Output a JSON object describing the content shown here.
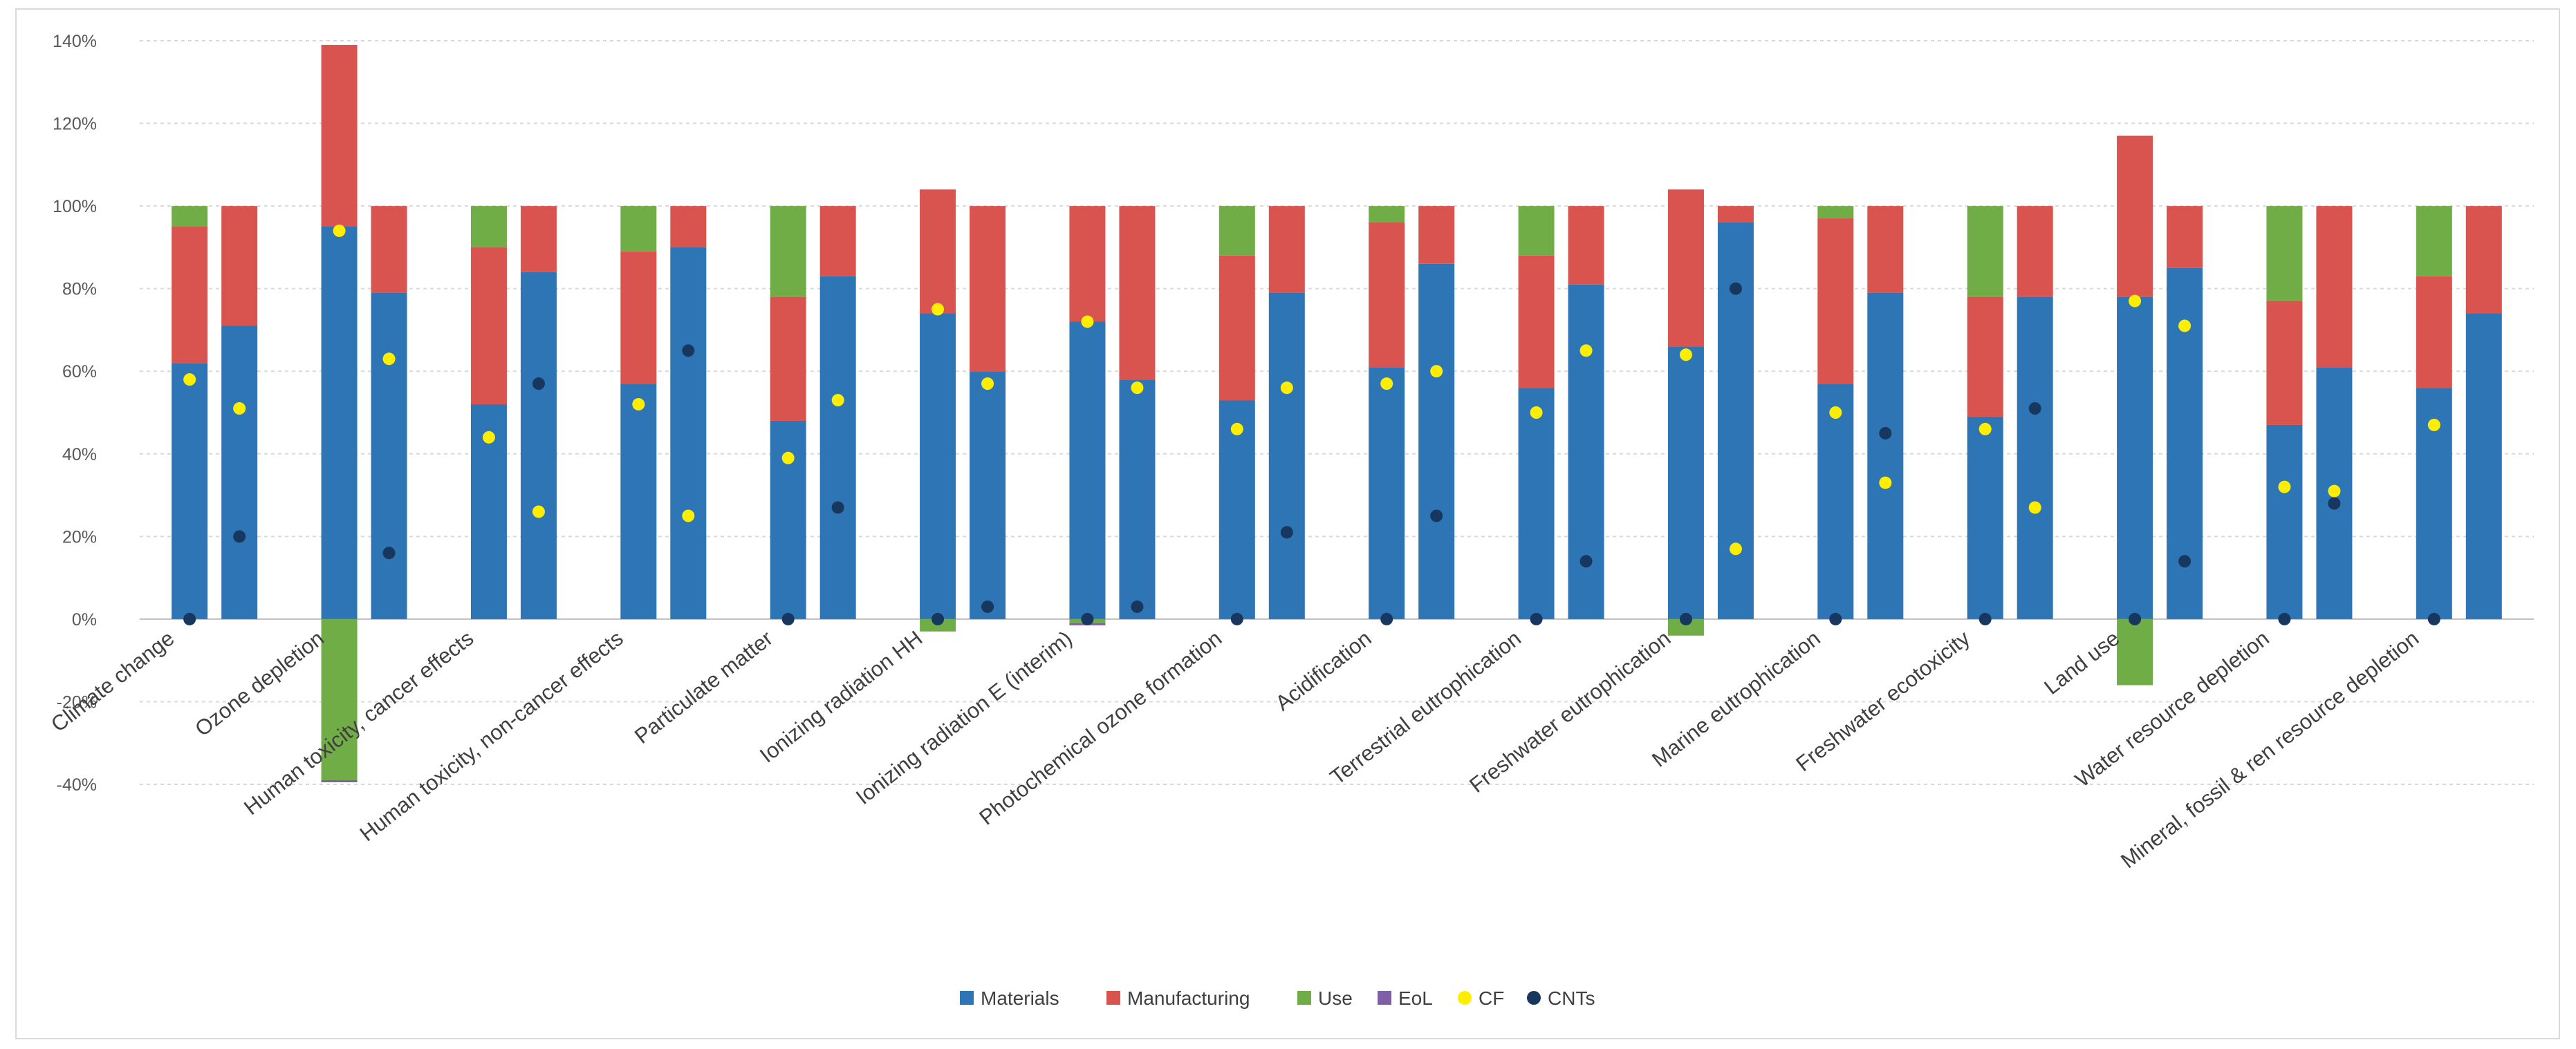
{
  "chart_data": {
    "type": "bar",
    "stacked": true,
    "ylim": [
      -40,
      140
    ],
    "yticks": [
      -40,
      -20,
      0,
      20,
      40,
      60,
      80,
      100,
      120,
      140
    ],
    "ytick_labels": [
      "-40%",
      "-20%",
      "0%",
      "20%",
      "40%",
      "60%",
      "80%",
      "100%",
      "120%",
      "140%"
    ],
    "grid": true,
    "legend_position": "bottom",
    "categories": [
      "Climate change",
      "Ozone depletion",
      "Human toxicity, cancer effects",
      "Human toxicity, non-cancer effects",
      "Particulate matter",
      "Ionizing radiation HH",
      "Ionizing radiation E (interim)",
      "Photochemical ozone formation",
      "Acidification",
      "Terrestrial eutrophication",
      "Freshwater eutrophication",
      "Marine eutrophication",
      "Freshwater ecotoxicity",
      "Land use",
      "Water resource depletion",
      "Mineral, fossil & ren resource depletion"
    ],
    "bars_per_category": 2,
    "series": [
      {
        "name": "Materials",
        "color": "#2e75b6",
        "values": [
          [
            62,
            71
          ],
          [
            95,
            79
          ],
          [
            52,
            84
          ],
          [
            57,
            90
          ],
          [
            48,
            83
          ],
          [
            74,
            60
          ],
          [
            72,
            58
          ],
          [
            53,
            79
          ],
          [
            61,
            86
          ],
          [
            56,
            81
          ],
          [
            66,
            96
          ],
          [
            57,
            79
          ],
          [
            49,
            78
          ],
          [
            78,
            85
          ],
          [
            47,
            61
          ],
          [
            56,
            74
          ]
        ]
      },
      {
        "name": "Manufacturing",
        "color": "#d9534f",
        "values": [
          [
            33,
            29
          ],
          [
            44,
            21
          ],
          [
            38,
            16
          ],
          [
            32,
            10
          ],
          [
            30,
            17
          ],
          [
            30,
            40
          ],
          [
            28,
            42
          ],
          [
            35,
            21
          ],
          [
            35,
            14
          ],
          [
            32,
            19
          ],
          [
            38,
            4
          ],
          [
            40,
            21
          ],
          [
            29,
            22
          ],
          [
            39,
            15
          ],
          [
            30,
            39
          ],
          [
            27,
            26
          ]
        ]
      },
      {
        "name": "Use",
        "color": "#70ad47",
        "values": [
          [
            5,
            0
          ],
          [
            -39,
            0
          ],
          [
            10,
            0
          ],
          [
            11,
            0
          ],
          [
            22,
            0
          ],
          [
            -3,
            0
          ],
          [
            -1,
            0
          ],
          [
            12,
            0
          ],
          [
            4,
            0
          ],
          [
            12,
            0
          ],
          [
            -4,
            0
          ],
          [
            3,
            0
          ],
          [
            22,
            0
          ],
          [
            -16,
            0
          ],
          [
            23,
            0
          ],
          [
            17,
            0
          ]
        ]
      },
      {
        "name": "EoL",
        "color": "#7f5fa8",
        "values": [
          [
            0,
            0
          ],
          [
            -0.5,
            0
          ],
          [
            0,
            0
          ],
          [
            0,
            0
          ],
          [
            0,
            0
          ],
          [
            0,
            0
          ],
          [
            -0.5,
            0
          ],
          [
            0,
            0
          ],
          [
            0,
            0
          ],
          [
            0,
            0
          ],
          [
            0,
            0
          ],
          [
            0,
            0
          ],
          [
            0,
            0
          ],
          [
            0,
            0
          ],
          [
            0,
            0
          ],
          [
            0,
            0
          ]
        ]
      }
    ],
    "markers": [
      {
        "name": "CF",
        "color": "#ffee00",
        "values": [
          [
            null,
            51
          ],
          [
            94,
            63
          ],
          [
            44,
            26
          ],
          [
            52,
            25
          ],
          [
            39,
            53
          ],
          [
            75,
            57
          ],
          [
            72,
            56
          ],
          [
            46,
            56
          ],
          [
            57,
            60
          ],
          [
            50,
            65
          ],
          [
            64,
            17
          ],
          [
            50,
            33
          ],
          [
            46,
            27
          ],
          [
            77,
            71
          ],
          [
            32,
            31
          ],
          [
            47,
            null
          ]
        ]
      },
      {
        "name": "CNTs",
        "color": "#17375e",
        "values": [
          [
            0,
            20
          ],
          [
            null,
            16
          ],
          [
            null,
            57
          ],
          [
            null,
            65
          ],
          [
            0,
            27
          ],
          [
            0,
            3
          ],
          [
            0,
            3
          ],
          [
            0,
            21
          ],
          [
            0,
            25
          ],
          [
            0,
            14
          ],
          [
            0,
            80
          ],
          [
            0,
            45
          ],
          [
            0,
            51
          ],
          [
            0,
            14
          ],
          [
            0,
            28
          ],
          [
            0,
            null
          ]
        ]
      }
    ],
    "extra_markers": [
      {
        "series": "CF",
        "category_index": 0,
        "bar": 0,
        "value": 58
      }
    ]
  },
  "legend": {
    "items": [
      {
        "label": "Materials",
        "color": "#2e75b6",
        "shape": "square"
      },
      {
        "label": "Manufacturing",
        "color": "#d9534f",
        "shape": "square"
      },
      {
        "label": "Use",
        "color": "#70ad47",
        "shape": "square"
      },
      {
        "label": "EoL",
        "color": "#7f5fa8",
        "shape": "square"
      },
      {
        "label": "CF",
        "color": "#ffee00",
        "shape": "circle"
      },
      {
        "label": "CNTs",
        "color": "#17375e",
        "shape": "circle"
      }
    ]
  }
}
